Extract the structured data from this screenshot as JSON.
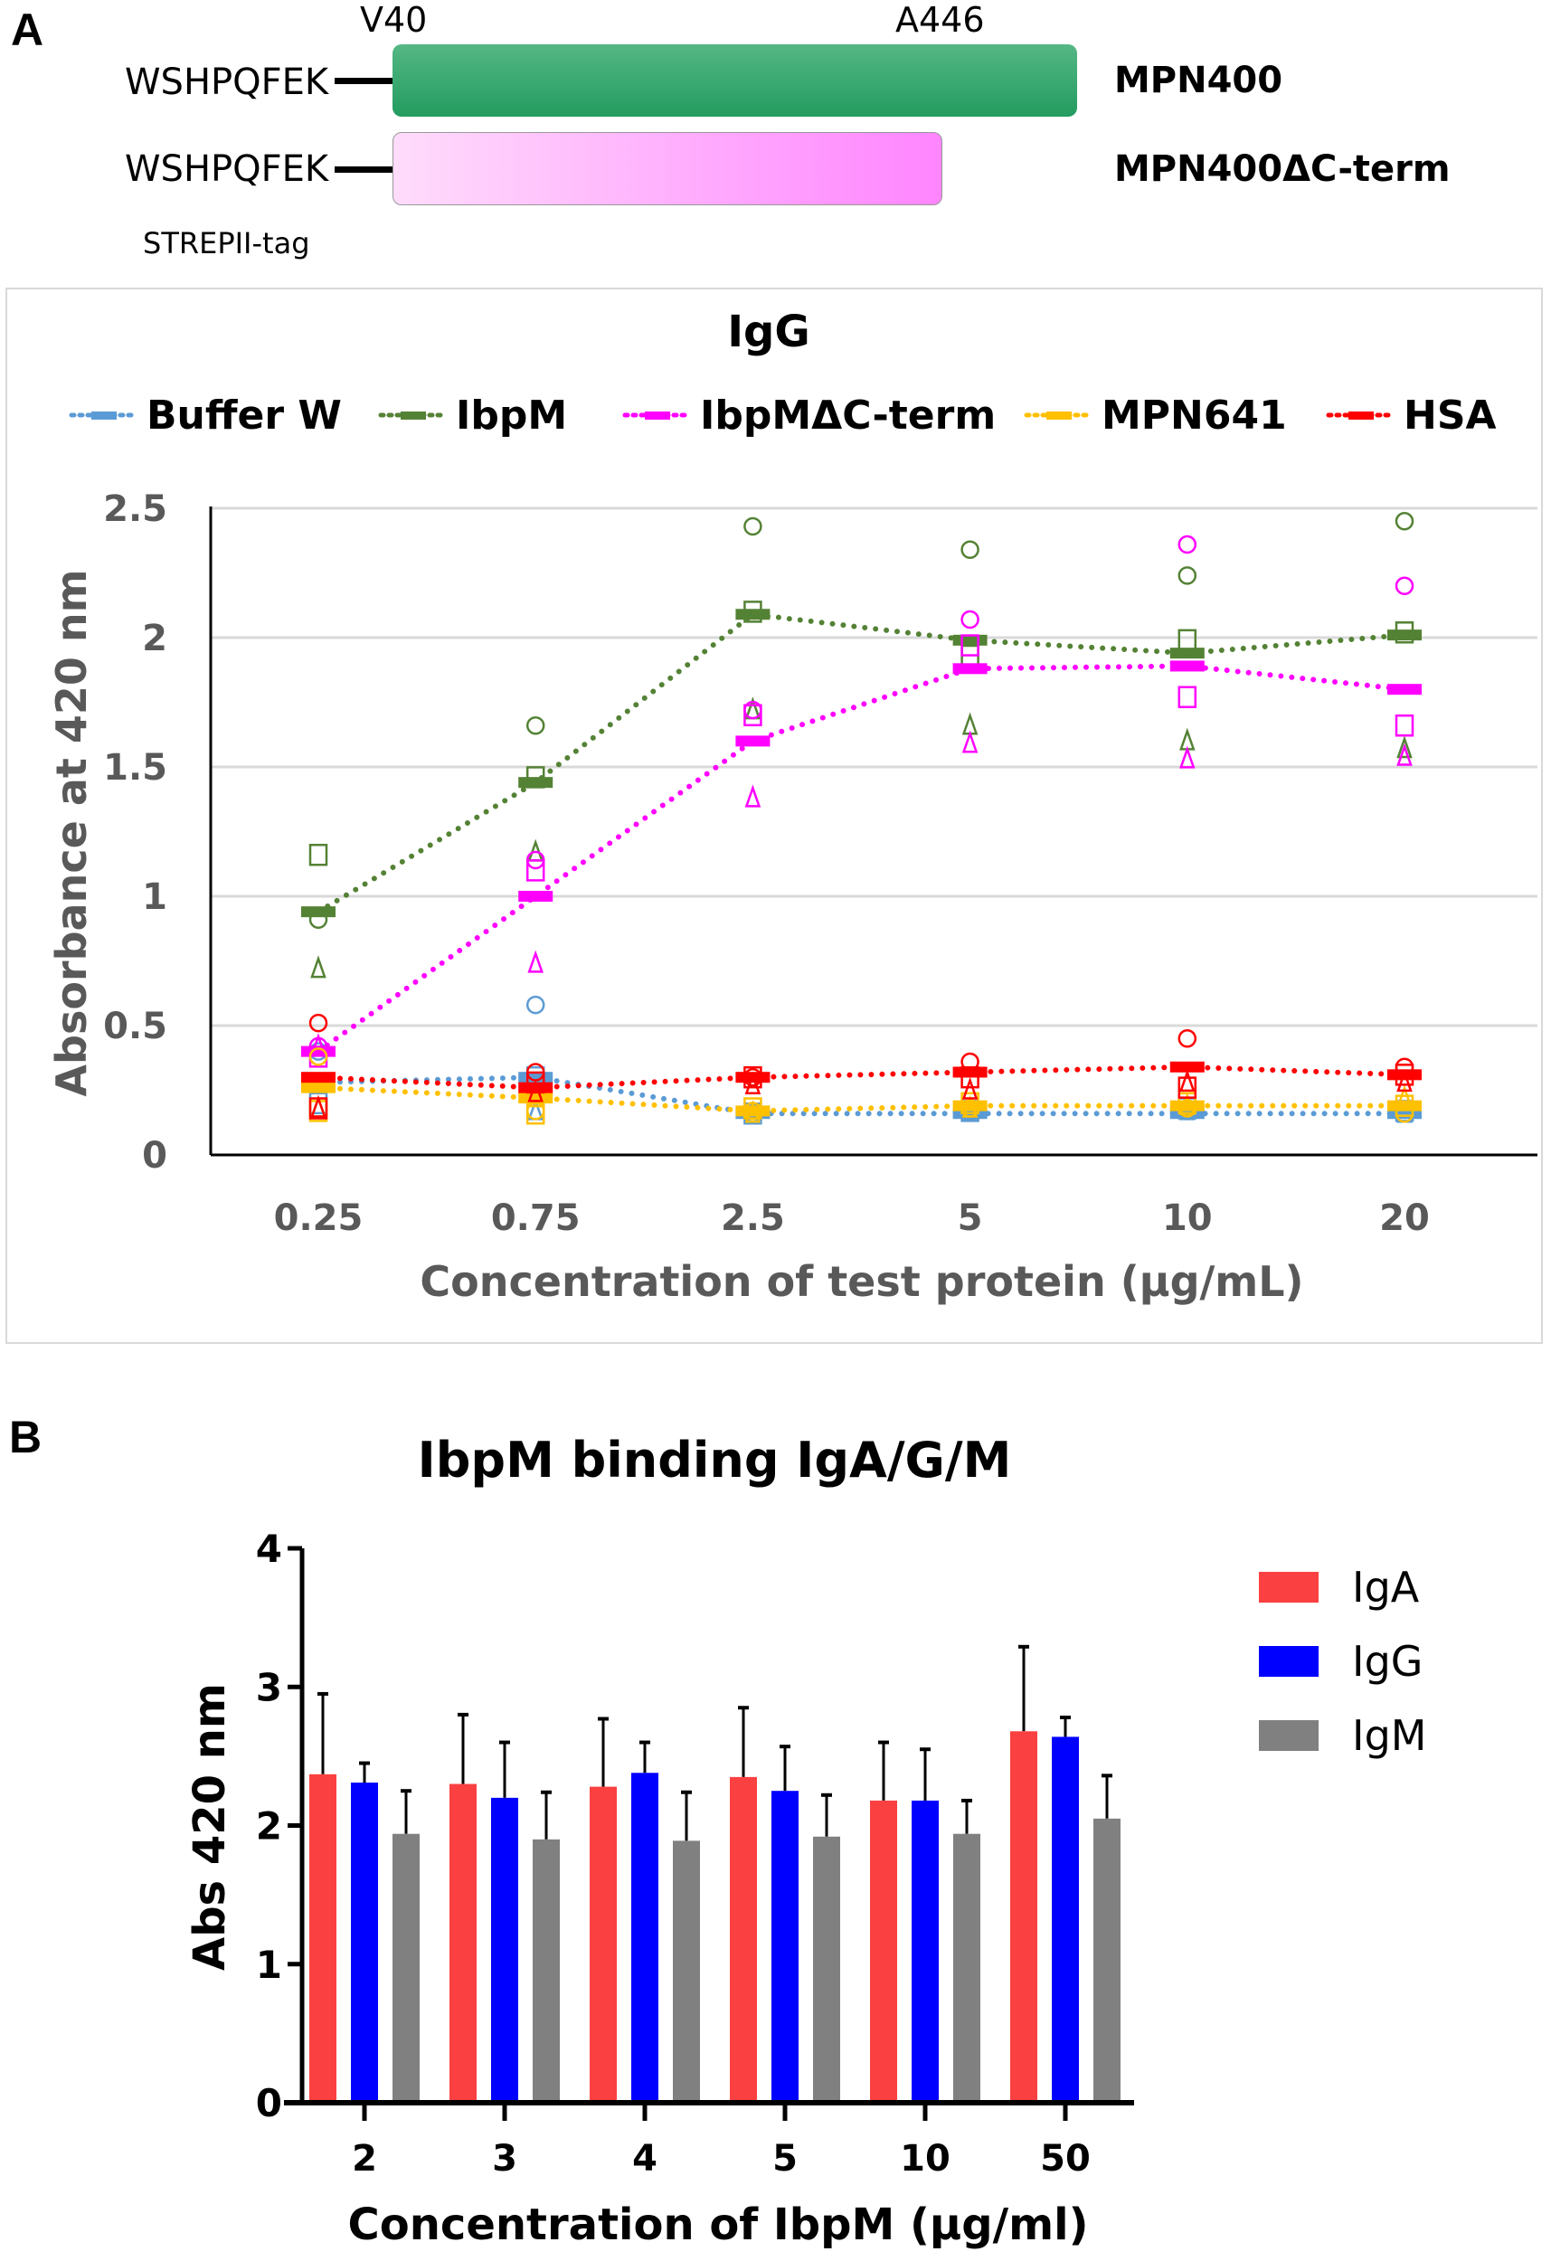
{
  "panel_a": {
    "letter": "A",
    "construct_diagram": {
      "start_residue": "V40",
      "end_residue": "A446",
      "tag_sequence": "WSHPQFEK",
      "tag_label": "STREPII-tag",
      "constructs": [
        {
          "name": "MPN400",
          "color_start": "#55b784",
          "color_end": "#239c60"
        },
        {
          "name": "MPN400ΔC-term",
          "color_start": "#ffdcfb",
          "color_end": "#ff85ff"
        }
      ]
    }
  },
  "panel_b": {
    "letter": "B"
  },
  "chart_data": [
    {
      "type": "line",
      "title": "IgG",
      "xlabel": "Concentration of test protein (µg/mL)",
      "ylabel": "Absorbance at 420 nm",
      "categories": [
        "0.25",
        "0.75",
        "2.5",
        "5",
        "10",
        "20"
      ],
      "ylim": [
        0,
        2.5
      ],
      "yticks": [
        "0",
        "0.5",
        "1",
        "1.5",
        "2",
        "2.5"
      ],
      "grid": true,
      "legend_position": "top",
      "line_style": "dotted",
      "series": [
        {
          "name": "Buffer W",
          "color": "#5b9bd5",
          "mean": [
            0.28,
            0.3,
            0.16,
            0.16,
            0.16,
            0.16
          ],
          "circles": [
            0.4,
            0.58,
            0.16,
            0.17,
            0.17,
            0.16
          ],
          "squares": [
            0.2,
            0.3,
            0.16,
            0.17,
            0.18,
            0.17
          ],
          "triangles": [
            0.18,
            0.17,
            0.16,
            0.17,
            0.17,
            0.16
          ]
        },
        {
          "name": "IbpM",
          "color": "#548235",
          "mean": [
            0.94,
            1.44,
            2.09,
            1.99,
            1.94,
            2.01
          ],
          "circles": [
            0.91,
            1.66,
            2.43,
            2.34,
            2.24,
            2.45
          ],
          "squares": [
            1.16,
            1.46,
            2.1,
            1.93,
            1.99,
            2.02
          ],
          "triangles": [
            0.72,
            1.17,
            1.72,
            1.66,
            1.6,
            1.57
          ]
        },
        {
          "name": "IbpMΔC-term",
          "color": "#ff00ff",
          "mean": [
            0.4,
            1.0,
            1.6,
            1.88,
            1.89,
            1.8
          ],
          "circles": [
            0.42,
            1.14,
            1.72,
            2.07,
            2.36,
            2.2
          ],
          "squares": [
            0.38,
            1.1,
            1.7,
            1.97,
            1.77,
            1.66
          ],
          "triangles": [
            0.42,
            0.74,
            1.38,
            1.59,
            1.53,
            1.54
          ]
        },
        {
          "name": "MPN641",
          "color": "#ffc000",
          "mean": [
            0.26,
            0.22,
            0.17,
            0.19,
            0.19,
            0.19
          ],
          "circles": [
            0.38,
            0.17,
            0.17,
            0.18,
            0.18,
            0.16
          ],
          "squares": [
            0.17,
            0.16,
            0.18,
            0.2,
            0.2,
            0.19
          ],
          "triangles": [
            0.18,
            0.22,
            0.16,
            0.18,
            0.19,
            0.22
          ]
        },
        {
          "name": "HSA",
          "color": "#ff0000",
          "mean": [
            0.3,
            0.26,
            0.3,
            0.32,
            0.34,
            0.31
          ],
          "circles": [
            0.51,
            0.32,
            0.3,
            0.36,
            0.45,
            0.34
          ],
          "squares": [
            0.18,
            0.28,
            0.3,
            0.3,
            0.26,
            0.31
          ],
          "triangles": [
            0.18,
            0.24,
            0.27,
            0.25,
            0.28,
            0.28
          ]
        }
      ]
    },
    {
      "type": "bar",
      "title": "IbpM binding IgA/G/M",
      "xlabel": "Concentration of IbpM (µg/ml)",
      "ylabel": "Abs 420 nm",
      "categories": [
        "2",
        "3",
        "4",
        "5",
        "10",
        "50"
      ],
      "ylim": [
        0,
        4
      ],
      "yticks": [
        "0",
        "1",
        "2",
        "3",
        "4"
      ],
      "grid": false,
      "legend_position": "right",
      "series": [
        {
          "name": "IgA",
          "color": "#fa4040",
          "values": [
            2.37,
            2.3,
            2.28,
            2.35,
            2.18,
            2.68
          ],
          "error": [
            0.58,
            0.5,
            0.49,
            0.5,
            0.42,
            0.61
          ]
        },
        {
          "name": "IgG",
          "color": "#0000ff",
          "values": [
            2.31,
            2.2,
            2.38,
            2.25,
            2.18,
            2.64
          ],
          "error": [
            0.14,
            0.4,
            0.22,
            0.32,
            0.37,
            0.14
          ]
        },
        {
          "name": "IgM",
          "color": "#808080",
          "values": [
            1.94,
            1.9,
            1.89,
            1.92,
            1.94,
            2.05
          ],
          "error": [
            0.31,
            0.34,
            0.35,
            0.3,
            0.24,
            0.31
          ]
        }
      ]
    }
  ]
}
